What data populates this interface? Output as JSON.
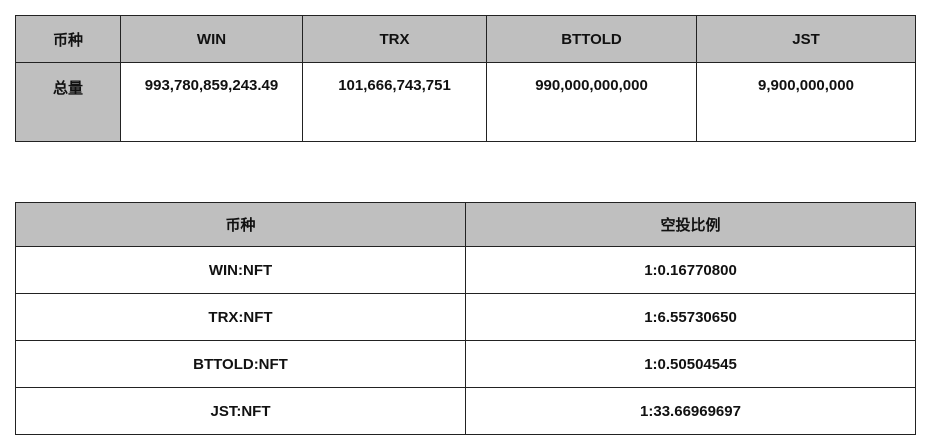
{
  "supply_table": {
    "header": [
      "币种",
      "WIN",
      "TRX",
      "BTTOLD",
      "JST"
    ],
    "rows": [
      [
        "总量",
        "993,780,859,243.49",
        "101,666,743,751",
        "990,000,000,000",
        "9,900,000,000"
      ]
    ]
  },
  "airdrop_table": {
    "header": [
      "币种",
      "空投比例"
    ],
    "rows": [
      [
        "WIN:NFT",
        "1:0.16770800"
      ],
      [
        "TRX:NFT",
        "1:6.55730650"
      ],
      [
        "BTTOLD:NFT",
        "1:0.50504545"
      ],
      [
        "JST:NFT",
        "1:33.66969697"
      ]
    ]
  }
}
